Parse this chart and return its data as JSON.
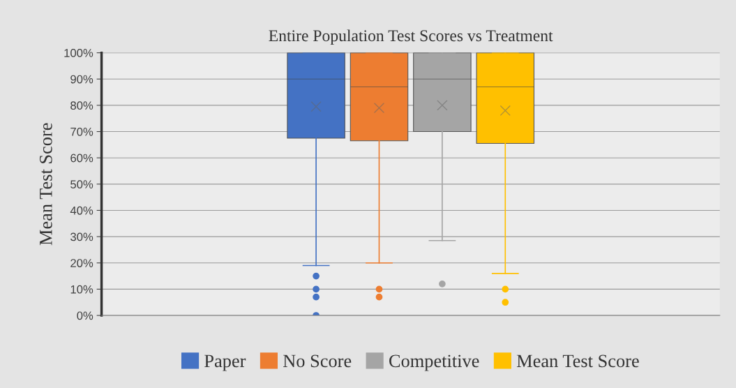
{
  "chart_data": {
    "type": "box",
    "title": "Entire Population Test Scores vs Treatment",
    "ylabel": "Mean Test Score",
    "categories": [
      null
    ],
    "series": [
      {
        "name": "Paper",
        "color": "#4472c4",
        "boxes": [
          {
            "low": 19,
            "q1": 67.5,
            "median": 90,
            "q3": 100,
            "high": 100,
            "mean": 79.5,
            "outliers": [
              15,
              10,
              7,
              0
            ]
          }
        ]
      },
      {
        "name": "No Score",
        "color": "#ed7d31",
        "boxes": [
          {
            "low": 20,
            "q1": 66.5,
            "median": 87,
            "q3": 100,
            "high": 100,
            "mean": 79,
            "outliers": [
              10,
              7
            ]
          }
        ]
      },
      {
        "name": "Competitive",
        "color": "#a5a5a5",
        "boxes": [
          {
            "low": 28.5,
            "q1": 70,
            "median": 90,
            "q3": 100,
            "high": 100,
            "mean": 80,
            "outliers": [
              12
            ]
          }
        ]
      },
      {
        "name": "Mean Test Score",
        "color": "#ffc000",
        "boxes": [
          {
            "low": 16,
            "q1": 65.5,
            "median": 87,
            "q3": 100,
            "high": 100,
            "mean": 78,
            "outliers": [
              10,
              5
            ]
          }
        ]
      }
    ],
    "ylim": [
      0,
      100
    ],
    "yticks": [
      {
        "value": 0,
        "label": "0%"
      },
      {
        "value": 10,
        "label": "10%"
      },
      {
        "value": 20,
        "label": "20%"
      },
      {
        "value": 30,
        "label": "30%"
      },
      {
        "value": 40,
        "label": "40%"
      },
      {
        "value": 50,
        "label": "50%"
      },
      {
        "value": 60,
        "label": "60%"
      },
      {
        "value": 70,
        "label": "70%"
      },
      {
        "value": 80,
        "label": "80%"
      },
      {
        "value": 90,
        "label": "90%"
      },
      {
        "value": 100,
        "label": "100%"
      }
    ],
    "grid": "y",
    "legend": "bottom",
    "tick_labels": "y"
  }
}
